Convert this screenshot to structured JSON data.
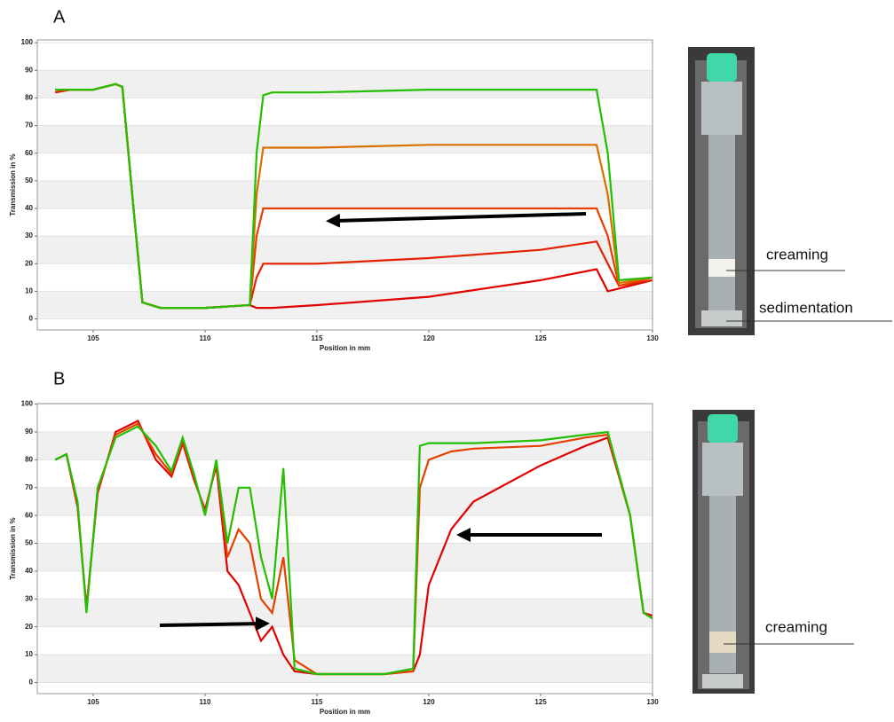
{
  "chart_data": [
    {
      "type": "line",
      "panel": "A",
      "xlabel": "Position in mm",
      "ylabel": "Transmission in %",
      "annotations": [
        "creaming",
        "sedimentation"
      ],
      "xlim": [
        102.5,
        130
      ],
      "xticks": [
        105,
        110,
        115,
        120,
        125,
        130
      ],
      "ylim": [
        -4,
        101
      ],
      "yticks": [
        0,
        10,
        20,
        30,
        40,
        50,
        60,
        70,
        80,
        90,
        100
      ],
      "grid": true,
      "x": [
        103.3,
        104,
        105,
        106,
        106.3,
        106.8,
        107.2,
        108,
        110,
        112,
        112.3,
        112.6,
        113,
        115,
        120,
        125,
        127.5,
        128,
        128.5,
        130
      ],
      "series": [
        {
          "color": "#e00000",
          "values": [
            82,
            83,
            83,
            85,
            84,
            40,
            6,
            4,
            4,
            5,
            4,
            4,
            4,
            5,
            8,
            14,
            18,
            10,
            11,
            14
          ]
        },
        {
          "color": "#e32000",
          "values": [
            82,
            83,
            83,
            85,
            84,
            40,
            6,
            4,
            4,
            5,
            15,
            20,
            20,
            20,
            22,
            25,
            28,
            20,
            12,
            14
          ]
        },
        {
          "color": "#e64000",
          "values": [
            83,
            83,
            83,
            85,
            84,
            40,
            6,
            4,
            4,
            5,
            30,
            40,
            40,
            40,
            40,
            40,
            40,
            30,
            12,
            15
          ]
        },
        {
          "color": "#d87000",
          "values": [
            83,
            83,
            83,
            85,
            84,
            40,
            6,
            4,
            4,
            5,
            45,
            62,
            62,
            62,
            63,
            63,
            63,
            45,
            13,
            15
          ]
        },
        {
          "color": "#22c000",
          "values": [
            83,
            83,
            83,
            85,
            84,
            40,
            6,
            4,
            4,
            5,
            60,
            81,
            82,
            82,
            83,
            83,
            83,
            60,
            14,
            15
          ]
        }
      ]
    },
    {
      "type": "line",
      "panel": "B",
      "xlabel": "Position in mm",
      "ylabel": "Transmission in %",
      "annotations": [
        "creaming"
      ],
      "xlim": [
        102.5,
        130
      ],
      "xticks": [
        105,
        110,
        115,
        120,
        125,
        130
      ],
      "ylim": [
        -4,
        100.2
      ],
      "yticks": [
        0,
        10,
        20,
        30,
        40,
        50,
        60,
        70,
        80,
        90,
        100
      ],
      "grid": true,
      "x": [
        103.3,
        103.8,
        104.3,
        104.7,
        105.2,
        106,
        107,
        107.8,
        108.5,
        109,
        109.5,
        110,
        110.5,
        111,
        111.5,
        112,
        112.5,
        113,
        113.5,
        114,
        115,
        116,
        118,
        119.3,
        119.6,
        120,
        121,
        122,
        125,
        127,
        128,
        129,
        129.6,
        130
      ],
      "series": [
        {
          "color": "#e00000",
          "values": [
            80,
            82,
            63,
            27,
            68,
            90,
            94,
            80,
            74,
            86,
            73,
            62,
            78,
            40,
            35,
            25,
            15,
            20,
            10,
            4,
            3,
            3,
            3,
            4,
            10,
            35,
            55,
            65,
            78,
            85,
            88,
            60,
            25,
            24
          ]
        },
        {
          "color": "#e64000",
          "values": [
            80,
            82,
            64,
            26,
            69,
            89,
            93,
            82,
            75,
            87,
            74,
            61,
            79,
            45,
            55,
            50,
            30,
            25,
            45,
            8,
            3,
            3,
            3,
            4,
            70,
            80,
            83,
            84,
            85,
            88,
            89,
            60,
            25,
            23
          ]
        },
        {
          "color": "#22c000",
          "values": [
            80,
            82,
            65,
            25,
            70,
            88,
            92,
            85,
            76,
            88,
            75,
            60,
            80,
            50,
            70,
            70,
            45,
            30,
            77,
            5,
            3,
            3,
            3,
            5,
            85,
            86,
            86,
            86,
            87,
            89,
            90,
            60,
            25,
            23
          ]
        }
      ]
    }
  ]
}
